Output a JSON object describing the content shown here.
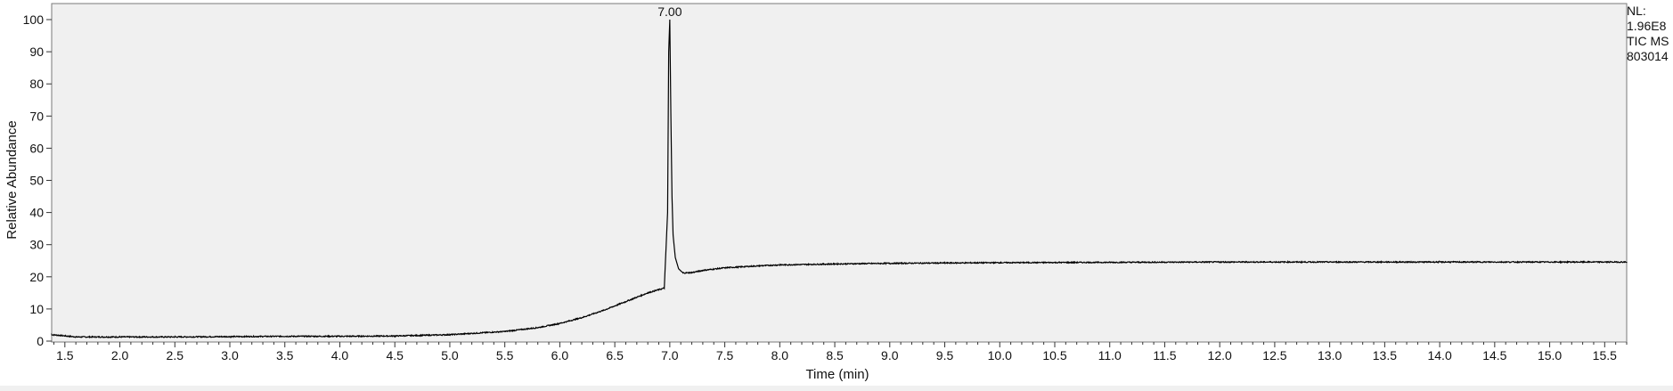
{
  "info": {
    "nl_label": "NL:",
    "nl_value": "1.96E8",
    "trace_label": "TIC  MS",
    "file_id": "803014"
  },
  "chart_data": {
    "type": "line",
    "title": "",
    "xlabel": "Time (min)",
    "ylabel": "Relative Abundance",
    "xlim": [
      1.38,
      15.7
    ],
    "ylim": [
      0,
      100
    ],
    "x_ticks": [
      1.5,
      2.0,
      2.5,
      3.0,
      3.5,
      4.0,
      4.5,
      5.0,
      5.5,
      6.0,
      6.5,
      7.0,
      7.5,
      8.0,
      8.5,
      9.0,
      9.5,
      10.0,
      10.5,
      11.0,
      11.5,
      12.0,
      12.5,
      13.0,
      13.5,
      14.0,
      14.5,
      15.0,
      15.5
    ],
    "y_ticks": [
      0,
      10,
      20,
      30,
      40,
      50,
      60,
      70,
      80,
      90,
      100
    ],
    "grid": false,
    "background": "#f0f0f0",
    "line_color": "#000000",
    "peak_labels": [
      {
        "x": 7.0,
        "y": 100,
        "text": "7.00"
      }
    ],
    "series": [
      {
        "x": [
          1.38,
          1.45,
          1.6,
          2.0,
          2.5,
          3.0,
          3.5,
          4.0,
          4.5,
          5.0,
          5.5,
          5.8,
          6.0,
          6.2,
          6.4,
          6.6,
          6.8,
          6.95,
          6.98,
          6.99,
          7.0,
          7.01,
          7.02,
          7.03,
          7.05,
          7.08,
          7.12,
          7.2,
          7.3,
          7.5,
          7.8,
          8.0,
          8.5,
          9.0,
          9.5,
          10.0,
          11.0,
          12.0,
          13.0,
          14.0,
          15.0,
          15.7
        ],
        "y": [
          2.0,
          1.8,
          1.3,
          1.3,
          1.3,
          1.4,
          1.5,
          1.5,
          1.6,
          2.0,
          3.0,
          4.2,
          5.5,
          7.3,
          9.6,
          12.3,
          15.0,
          16.5,
          40.0,
          90.0,
          100.0,
          70.0,
          45.0,
          33.0,
          26.0,
          22.5,
          21.2,
          21.3,
          22.0,
          22.8,
          23.4,
          23.7,
          24.0,
          24.2,
          24.3,
          24.4,
          24.5,
          24.6,
          24.6,
          24.6,
          24.6,
          24.6
        ]
      }
    ]
  }
}
